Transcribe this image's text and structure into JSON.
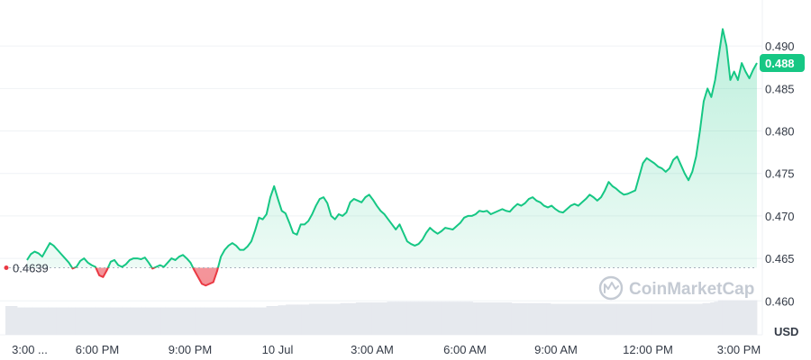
{
  "chart_data": {
    "type": "line",
    "x_labels": [
      "3:00 ...",
      "6:00 PM",
      "9:00 PM",
      "10 Jul",
      "3:00 AM",
      "6:00 AM",
      "9:00 AM",
      "12:00 PM",
      "3:00 PM"
    ],
    "y_ticks": [
      0.46,
      0.465,
      0.47,
      0.475,
      0.48,
      0.485,
      0.49
    ],
    "ylim": [
      0.456,
      0.495
    ],
    "reference_price": 0.4639,
    "reference_label": "0.4639",
    "current_price": 0.488,
    "current_label": "0.488",
    "currency": "USD",
    "watermark": "CoinMarketCap",
    "colors": {
      "up": "#16c784",
      "down": "#ea3943",
      "grid": "#eff2f5",
      "volume": "#e6e9ee",
      "tag": "#16c784"
    },
    "series": [
      {
        "values": [
          0.4648,
          0.4655,
          0.4658,
          0.4656,
          0.4652,
          0.466,
          0.4668,
          0.4665,
          0.466,
          0.4655,
          0.465,
          0.4645,
          0.4638,
          0.464,
          0.4647,
          0.465,
          0.4645,
          0.4642,
          0.464,
          0.463,
          0.4628,
          0.4636,
          0.4646,
          0.4648,
          0.4642,
          0.464,
          0.4643,
          0.4648,
          0.465,
          0.465,
          0.4649,
          0.4651,
          0.4645,
          0.4638,
          0.464,
          0.4642,
          0.464,
          0.4645,
          0.465,
          0.4648,
          0.4652,
          0.4654,
          0.465,
          0.4645,
          0.4636,
          0.4628,
          0.462,
          0.4618,
          0.462,
          0.4622,
          0.4635,
          0.4652,
          0.466,
          0.4665,
          0.4668,
          0.4665,
          0.466,
          0.466,
          0.4664,
          0.467,
          0.4683,
          0.4698,
          0.4696,
          0.4702,
          0.4722,
          0.4735,
          0.472,
          0.4706,
          0.4703,
          0.4692,
          0.468,
          0.4678,
          0.469,
          0.469,
          0.4694,
          0.4702,
          0.4712,
          0.472,
          0.4722,
          0.4715,
          0.47,
          0.4696,
          0.4702,
          0.47,
          0.4704,
          0.4716,
          0.472,
          0.4718,
          0.4716,
          0.4722,
          0.4725,
          0.4719,
          0.4712,
          0.4706,
          0.4702,
          0.4696,
          0.469,
          0.4684,
          0.469,
          0.468,
          0.467,
          0.4667,
          0.4665,
          0.4667,
          0.4672,
          0.468,
          0.4686,
          0.4682,
          0.4679,
          0.4682,
          0.4686,
          0.4685,
          0.4684,
          0.4688,
          0.4692,
          0.4698,
          0.47,
          0.47,
          0.4702,
          0.4706,
          0.4705,
          0.4706,
          0.4702,
          0.4704,
          0.4706,
          0.4708,
          0.4706,
          0.4705,
          0.471,
          0.4714,
          0.4712,
          0.4715,
          0.472,
          0.4722,
          0.4718,
          0.4716,
          0.4712,
          0.471,
          0.4712,
          0.4708,
          0.4705,
          0.4704,
          0.4708,
          0.4712,
          0.4714,
          0.4712,
          0.4716,
          0.472,
          0.4725,
          0.4722,
          0.4718,
          0.4722,
          0.473,
          0.474,
          0.4735,
          0.4732,
          0.4728,
          0.4725,
          0.4726,
          0.4728,
          0.473,
          0.4746,
          0.4762,
          0.4768,
          0.4765,
          0.4762,
          0.4758,
          0.4756,
          0.4752,
          0.4756,
          0.4766,
          0.477,
          0.476,
          0.475,
          0.4742,
          0.4752,
          0.477,
          0.48,
          0.4835,
          0.485,
          0.484,
          0.486,
          0.489,
          0.492,
          0.49,
          0.486,
          0.487,
          0.486,
          0.488,
          0.487,
          0.4862,
          0.4872,
          0.488
        ]
      }
    ],
    "volume": [
      0.4,
      0.4,
      0.4,
      0.38,
      0.38,
      0.38,
      0.38,
      0.38,
      0.38,
      0.38,
      0.38,
      0.38,
      0.38,
      0.38,
      0.38,
      0.38,
      0.38,
      0.38,
      0.38,
      0.38,
      0.38,
      0.38,
      0.38,
      0.38,
      0.38,
      0.38,
      0.38,
      0.38,
      0.38,
      0.38,
      0.38,
      0.38,
      0.38,
      0.38,
      0.38,
      0.38,
      0.38,
      0.38,
      0.38,
      0.38,
      0.38,
      0.38,
      0.38,
      0.38,
      0.38,
      0.38,
      0.38,
      0.38,
      0.38,
      0.38,
      0.38,
      0.38,
      0.38,
      0.38,
      0.38,
      0.38,
      0.38,
      0.38,
      0.38,
      0.38,
      0.38,
      0.38,
      0.38,
      0.38,
      0.38,
      0.38,
      0.38,
      0.4,
      0.4,
      0.4,
      0.41,
      0.41,
      0.42,
      0.42,
      0.42,
      0.42,
      0.42,
      0.42,
      0.43,
      0.43,
      0.43,
      0.43,
      0.43,
      0.43,
      0.43,
      0.43,
      0.44,
      0.44,
      0.44,
      0.44,
      0.45,
      0.45,
      0.45,
      0.45,
      0.45,
      0.45,
      0.45,
      0.45,
      0.46,
      0.46,
      0.46,
      0.46,
      0.46,
      0.46,
      0.46,
      0.46,
      0.46,
      0.46,
      0.46,
      0.46,
      0.46,
      0.46,
      0.46,
      0.46,
      0.46,
      0.46,
      0.46,
      0.46,
      0.46,
      0.46,
      0.45,
      0.45,
      0.45,
      0.45,
      0.45,
      0.45,
      0.45,
      0.45,
      0.45,
      0.45,
      0.44,
      0.44,
      0.44,
      0.44,
      0.44,
      0.44,
      0.44,
      0.44,
      0.44,
      0.44,
      0.43,
      0.43,
      0.43,
      0.43,
      0.43,
      0.43,
      0.43,
      0.43,
      0.43,
      0.43,
      0.43,
      0.43,
      0.43,
      0.43,
      0.43,
      0.43,
      0.43,
      0.43,
      0.43,
      0.43,
      0.43,
      0.43,
      0.43,
      0.43,
      0.43,
      0.43,
      0.43,
      0.43,
      0.43,
      0.43,
      0.43,
      0.43,
      0.43,
      0.43,
      0.43,
      0.43,
      0.43,
      0.43,
      0.43,
      0.44,
      0.44,
      0.45,
      0.46,
      0.48,
      0.48,
      0.48,
      0.48,
      0.48,
      0.48,
      0.48,
      0.48,
      0.48,
      0.48
    ]
  }
}
